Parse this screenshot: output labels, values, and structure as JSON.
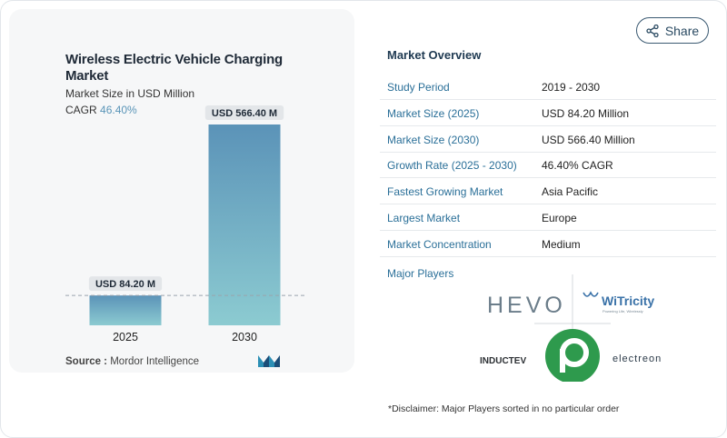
{
  "share": {
    "label": "Share",
    "icon": "share-icon"
  },
  "chart_data": {
    "type": "bar",
    "title": "Wireless Electric Vehicle Charging Market",
    "subtitle": "Market Size in USD Million",
    "cagr_label": "CAGR",
    "cagr_value": "46.40%",
    "categories": [
      "2025",
      "2030"
    ],
    "values": [
      84.2,
      566.4
    ],
    "data_labels": [
      "USD 84.20 M",
      "USD 566.40 M"
    ],
    "ylim": [
      0,
      566.4
    ],
    "grid": false,
    "bar_color_top": "#5b93b8",
    "bar_color_bottom": "#8ccbd1"
  },
  "source": {
    "label": "Source :",
    "value": "Mordor Intelligence"
  },
  "overview": {
    "title": "Market Overview",
    "rows": [
      {
        "key": "Study Period",
        "value": "2019 - 2030"
      },
      {
        "key": "Market Size (2025)",
        "value": "USD 84.20 Million"
      },
      {
        "key": "Market Size (2030)",
        "value": "USD 566.40 Million"
      },
      {
        "key": "Growth Rate (2025 - 2030)",
        "value": "46.40% CAGR"
      },
      {
        "key": "Fastest Growing Market",
        "value": "Asia Pacific"
      },
      {
        "key": "Largest Market",
        "value": "Europe"
      },
      {
        "key": "Market Concentration",
        "value": "Medium"
      }
    ]
  },
  "players": {
    "title": "Major Players",
    "logos": [
      "HEVO",
      "WiTricity",
      "INDUCTEV",
      "Plugless",
      "electreon"
    ],
    "witricity_tagline": "Powering Life, Wirelessly"
  },
  "disclaimer": "*Disclaimer: Major Players sorted in no particular order"
}
